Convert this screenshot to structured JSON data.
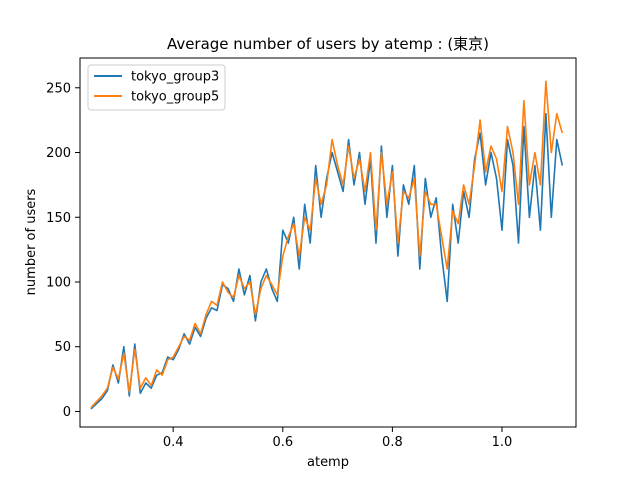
{
  "chart_data": {
    "type": "line",
    "title": "Average number of users by atemp : (東京)",
    "xlabel": "atemp",
    "ylabel": "number of users",
    "xlim": [
      0.23,
      1.135
    ],
    "ylim": [
      -12,
      273
    ],
    "xticks": [
      0.4,
      0.6,
      0.8,
      1.0
    ],
    "xtick_labels": [
      "0.4",
      "0.6",
      "0.8",
      "1.0"
    ],
    "yticks": [
      0,
      50,
      100,
      150,
      200,
      250
    ],
    "ytick_labels": [
      "0",
      "50",
      "100",
      "150",
      "200",
      "250"
    ],
    "legend_position": "top-left",
    "grid": false,
    "series": [
      {
        "name": "tokyo_group3",
        "color": "#1f77b4",
        "x": [
          0.25,
          0.27,
          0.28,
          0.29,
          0.3,
          0.31,
          0.32,
          0.33,
          0.34,
          0.35,
          0.36,
          0.37,
          0.38,
          0.39,
          0.4,
          0.41,
          0.42,
          0.43,
          0.44,
          0.45,
          0.46,
          0.47,
          0.48,
          0.49,
          0.5,
          0.51,
          0.52,
          0.53,
          0.54,
          0.55,
          0.56,
          0.57,
          0.58,
          0.59,
          0.6,
          0.61,
          0.62,
          0.63,
          0.64,
          0.65,
          0.66,
          0.67,
          0.68,
          0.69,
          0.7,
          0.71,
          0.72,
          0.73,
          0.74,
          0.75,
          0.76,
          0.77,
          0.78,
          0.79,
          0.8,
          0.81,
          0.82,
          0.83,
          0.84,
          0.85,
          0.86,
          0.87,
          0.88,
          0.89,
          0.9,
          0.91,
          0.92,
          0.93,
          0.94,
          0.95,
          0.96,
          0.97,
          0.98,
          0.99,
          1.0,
          1.01,
          1.02,
          1.03,
          1.04,
          1.05,
          1.06,
          1.07,
          1.08,
          1.09,
          1.1,
          1.11
        ],
        "values": [
          2,
          10,
          16,
          36,
          22,
          50,
          12,
          52,
          14,
          22,
          18,
          28,
          30,
          42,
          40,
          48,
          60,
          52,
          65,
          58,
          72,
          80,
          78,
          98,
          95,
          85,
          110,
          90,
          105,
          70,
          100,
          110,
          95,
          85,
          140,
          130,
          150,
          110,
          160,
          130,
          190,
          150,
          180,
          200,
          185,
          170,
          210,
          175,
          200,
          160,
          195,
          130,
          205,
          150,
          190,
          120,
          175,
          160,
          190,
          110,
          180,
          150,
          165,
          120,
          85,
          160,
          130,
          170,
          150,
          195,
          215,
          175,
          200,
          180,
          140,
          210,
          190,
          130,
          220,
          150,
          190,
          140,
          230,
          150,
          210,
          190
        ]
      },
      {
        "name": "tokyo_group5",
        "color": "#ff7f0e",
        "x": [
          0.25,
          0.27,
          0.28,
          0.29,
          0.3,
          0.31,
          0.32,
          0.33,
          0.34,
          0.35,
          0.36,
          0.37,
          0.38,
          0.39,
          0.4,
          0.41,
          0.42,
          0.43,
          0.44,
          0.45,
          0.46,
          0.47,
          0.48,
          0.49,
          0.5,
          0.51,
          0.52,
          0.53,
          0.54,
          0.55,
          0.56,
          0.57,
          0.58,
          0.59,
          0.6,
          0.61,
          0.62,
          0.63,
          0.64,
          0.65,
          0.66,
          0.67,
          0.68,
          0.69,
          0.7,
          0.71,
          0.72,
          0.73,
          0.74,
          0.75,
          0.76,
          0.77,
          0.78,
          0.79,
          0.8,
          0.81,
          0.82,
          0.83,
          0.84,
          0.85,
          0.86,
          0.87,
          0.88,
          0.89,
          0.9,
          0.91,
          0.92,
          0.93,
          0.94,
          0.95,
          0.96,
          0.97,
          0.98,
          0.99,
          1.0,
          1.01,
          1.02,
          1.03,
          1.04,
          1.05,
          1.06,
          1.07,
          1.08,
          1.09,
          1.1,
          1.11
        ],
        "values": [
          3,
          12,
          18,
          34,
          25,
          45,
          15,
          48,
          18,
          26,
          20,
          32,
          28,
          40,
          42,
          50,
          58,
          55,
          68,
          60,
          75,
          85,
          82,
          100,
          92,
          88,
          105,
          95,
          100,
          75,
          95,
          105,
          98,
          90,
          120,
          135,
          145,
          120,
          150,
          140,
          180,
          160,
          175,
          210,
          190,
          175,
          205,
          180,
          195,
          170,
          200,
          140,
          200,
          160,
          185,
          130,
          170,
          165,
          180,
          120,
          170,
          160,
          160,
          135,
          110,
          155,
          145,
          175,
          160,
          190,
          225,
          185,
          205,
          195,
          170,
          220,
          200,
          160,
          240,
          175,
          200,
          175,
          255,
          200,
          230,
          215
        ]
      }
    ]
  }
}
